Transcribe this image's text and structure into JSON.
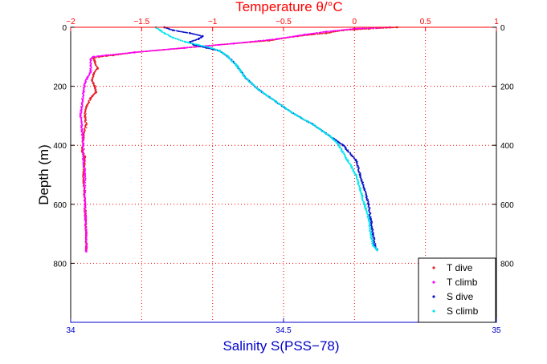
{
  "chart_data": {
    "type": "scatter",
    "title": "Temperature θ/°C",
    "xlabel_bottom": "Salinity S(PSS−78)",
    "ylabel": "Depth (m)",
    "x_top": {
      "label": "Temperature θ/°C",
      "lim": [
        -2,
        1
      ],
      "ticks": [
        "−2",
        "−1.5",
        "−1",
        "−0.5",
        "0",
        "0.5",
        "1"
      ],
      "tick_values": [
        -2,
        -1.5,
        -1,
        -0.5,
        0,
        0.5,
        1
      ]
    },
    "x_bottom": {
      "label": "Salinity S(PSS−78)",
      "lim": [
        34,
        35
      ],
      "ticks": [
        "34",
        "34.5",
        "35"
      ],
      "tick_values": [
        34,
        34.5,
        35
      ]
    },
    "y": {
      "lim": [
        0,
        1000
      ],
      "reversed": true,
      "ticks": [
        "0",
        "200",
        "400",
        "600",
        "800"
      ],
      "tick_values": [
        0,
        200,
        400,
        600,
        800
      ]
    },
    "grid": true,
    "legend_position": "bottom-right",
    "colors": {
      "t_dive": "#e8202a",
      "t_climb": "#ff00ff",
      "s_dive": "#0a12c8",
      "s_climb": "#00e5ee",
      "top_axis": "#ff0000",
      "bottom_axis": "#0000cc",
      "grid": "#ff0000"
    },
    "series": [
      {
        "name": "T dive",
        "axis": "temperature",
        "color": "#e8202a",
        "depth": [
          0,
          5,
          10,
          20,
          30,
          45,
          55,
          70,
          85,
          95,
          100,
          105,
          115,
          140,
          160,
          180,
          200,
          220,
          240,
          270,
          300,
          330,
          370,
          420,
          440,
          500,
          600,
          700,
          755
        ],
        "values": [
          0.3,
          0.1,
          -0.08,
          -0.2,
          -0.4,
          -0.6,
          -0.85,
          -1.2,
          -1.55,
          -1.7,
          -1.8,
          -1.84,
          -1.83,
          -1.81,
          -1.84,
          -1.85,
          -1.83,
          -1.82,
          -1.86,
          -1.89,
          -1.9,
          -1.89,
          -1.91,
          -1.92,
          -1.9,
          -1.91,
          -1.9,
          -1.89,
          -1.89
        ]
      },
      {
        "name": "T climb",
        "axis": "temperature",
        "color": "#ff00ff",
        "depth": [
          0,
          5,
          15,
          25,
          40,
          55,
          70,
          85,
          95,
          100,
          110,
          130,
          150,
          170,
          190,
          220,
          260,
          300,
          350,
          400,
          450,
          500,
          600,
          700,
          760
        ],
        "values": [
          0.25,
          0.0,
          -0.2,
          -0.35,
          -0.55,
          -0.85,
          -1.2,
          -1.55,
          -1.75,
          -1.84,
          -1.86,
          -1.86,
          -1.86,
          -1.88,
          -1.9,
          -1.91,
          -1.92,
          -1.93,
          -1.92,
          -1.91,
          -1.91,
          -1.9,
          -1.9,
          -1.89,
          -1.89
        ]
      },
      {
        "name": "S dive",
        "axis": "salinity",
        "color": "#0a12c8",
        "depth": [
          0,
          10,
          20,
          30,
          40,
          50,
          60,
          70,
          80,
          100,
          130,
          170,
          210,
          250,
          290,
          330,
          370,
          400,
          450,
          500,
          550,
          600,
          650,
          700,
          740,
          755
        ],
        "values": [
          34.22,
          34.24,
          34.28,
          34.31,
          34.3,
          34.28,
          34.29,
          34.32,
          34.35,
          34.37,
          34.39,
          34.41,
          34.44,
          34.48,
          34.52,
          34.57,
          34.61,
          34.64,
          34.67,
          34.68,
          34.69,
          34.7,
          34.705,
          34.71,
          34.715,
          34.72
        ]
      },
      {
        "name": "S climb",
        "axis": "salinity",
        "color": "#00e5ee",
        "depth": [
          0,
          10,
          20,
          35,
          50,
          60,
          70,
          80,
          90,
          100,
          130,
          170,
          210,
          250,
          290,
          330,
          370,
          400,
          450,
          500,
          550,
          600,
          650,
          700,
          740,
          755
        ],
        "values": [
          34.2,
          34.21,
          34.22,
          34.24,
          34.27,
          34.3,
          34.33,
          34.35,
          34.36,
          34.37,
          34.39,
          34.41,
          34.44,
          34.48,
          34.52,
          34.57,
          34.61,
          34.63,
          34.65,
          34.67,
          34.68,
          34.69,
          34.7,
          34.705,
          34.71,
          34.72
        ]
      }
    ]
  }
}
